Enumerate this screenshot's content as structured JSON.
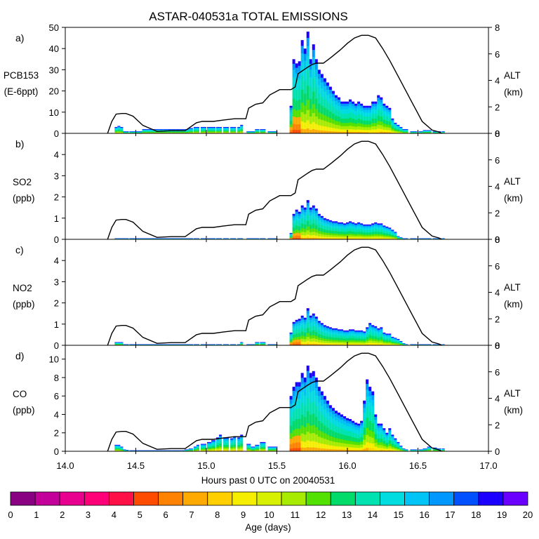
{
  "chart_data": {
    "type": "stacked-bar-with-line",
    "title": "ASTAR-040531a TOTAL EMISSIONS",
    "xlabel": "Hours past 0 UTC on 20040531",
    "x_range": [
      14.0,
      17.0
    ],
    "x_ticks": [
      "14.0",
      "14.5",
      "15.0",
      "15.5",
      "16.0",
      "16.5",
      "17.0"
    ],
    "x_tick_values": [
      14.0,
      14.5,
      15.0,
      15.5,
      16.0,
      16.5,
      17.0
    ],
    "colorbar": {
      "label": "Age (days)",
      "ticks": [
        "0",
        "1",
        "2",
        "3",
        "4",
        "5",
        "6",
        "7",
        "8",
        "9",
        "10",
        "11",
        "12",
        "13",
        "14",
        "15",
        "16",
        "17",
        "18",
        "19",
        "20"
      ],
      "colors": [
        "#8a0083",
        "#c4009a",
        "#e8008f",
        "#ff0078",
        "#ff1046",
        "#ff4c00",
        "#ff8200",
        "#ffaa00",
        "#ffcf00",
        "#f5ee00",
        "#d6f000",
        "#a7ec00",
        "#52e100",
        "#00db6a",
        "#00e3b1",
        "#00dce0",
        "#00c4f5",
        "#0098ff",
        "#0050ff",
        "#1c00ff",
        "#6a00ff"
      ]
    },
    "altitude_profile": {
      "name": "ALT (km)",
      "x": [
        14.3,
        14.33,
        14.36,
        14.4,
        14.43,
        14.48,
        14.55,
        14.65,
        14.75,
        14.85,
        14.93,
        14.97,
        15.05,
        15.12,
        15.2,
        15.28,
        15.3,
        15.35,
        15.4,
        15.45,
        15.52,
        15.55,
        15.6,
        15.63,
        15.65,
        15.72,
        15.75,
        15.78,
        15.83,
        15.88,
        15.95,
        16.0,
        16.05,
        16.1,
        16.15,
        16.2,
        16.25,
        16.3,
        16.35,
        16.4,
        16.45,
        16.5,
        16.53,
        16.6,
        16.65,
        16.67
      ],
      "alt_km": [
        0.0,
        0.9,
        1.45,
        1.5,
        1.5,
        1.3,
        0.6,
        0.15,
        0.2,
        0.2,
        0.8,
        0.9,
        0.9,
        1.0,
        1.1,
        1.1,
        1.9,
        2.2,
        2.3,
        2.9,
        3.3,
        3.3,
        3.3,
        3.5,
        4.5,
        5.0,
        5.2,
        5.3,
        5.3,
        5.7,
        6.3,
        6.8,
        7.2,
        7.4,
        7.4,
        7.2,
        6.4,
        5.5,
        4.5,
        3.5,
        2.5,
        1.5,
        0.9,
        0.25,
        0.1,
        0.0
      ],
      "range": [
        0,
        8
      ],
      "ticks": [
        "0",
        "2",
        "4",
        "6",
        "8"
      ],
      "tick_values": [
        0,
        2,
        4,
        6,
        8
      ]
    },
    "bar_x": [
      14.36,
      14.38,
      14.4,
      14.42,
      14.44,
      14.47,
      14.5,
      14.53,
      14.56,
      14.59,
      14.62,
      14.65,
      14.68,
      14.71,
      14.74,
      14.77,
      14.8,
      14.83,
      14.86,
      14.89,
      14.92,
      14.94,
      14.98,
      15.02,
      15.05,
      15.08,
      15.1,
      15.14,
      15.18,
      15.2,
      15.23,
      15.25,
      15.3,
      15.33,
      15.36,
      15.4,
      15.47,
      15.6,
      15.62,
      15.64,
      15.66,
      15.68,
      15.7,
      15.72,
      15.74,
      15.76,
      15.78,
      15.8,
      15.82,
      15.84,
      15.86,
      15.88,
      15.9,
      15.92,
      15.94,
      15.96,
      15.98,
      16.0,
      16.02,
      16.04,
      16.06,
      16.08,
      16.1,
      16.12,
      16.14,
      16.16,
      16.18,
      16.2,
      16.22,
      16.24,
      16.26,
      16.28,
      16.3,
      16.32,
      16.34,
      16.36,
      16.38,
      16.4,
      16.42,
      16.47,
      16.52,
      16.55,
      16.58,
      16.62,
      16.65,
      16.68
    ],
    "panels": [
      {
        "letter": "a)",
        "species": "PCB153",
        "unit": "(E-6ppt)",
        "y_range": [
          0,
          50
        ],
        "y_ticks": [
          "0",
          "10",
          "20",
          "30",
          "40",
          "50"
        ],
        "y_tick_values": [
          0,
          10,
          20,
          30,
          40,
          50
        ],
        "bar_heights": [
          3,
          3.5,
          3,
          1,
          1,
          1,
          1,
          1,
          2,
          2,
          2,
          2,
          2,
          2,
          2,
          2,
          2,
          2,
          2,
          2.5,
          3,
          3,
          3,
          3,
          3,
          3,
          3,
          3,
          3,
          3,
          3,
          4,
          1,
          1,
          2,
          2,
          1,
          13,
          35,
          33,
          34,
          44,
          40,
          48,
          35,
          42,
          35,
          30,
          28,
          26,
          24,
          22,
          20,
          18,
          17,
          15,
          15,
          15,
          16,
          15,
          14,
          15,
          14,
          13,
          13,
          13,
          15,
          15,
          18,
          17,
          14,
          13,
          12,
          7,
          5,
          4,
          3,
          2,
          2,
          1,
          1,
          1.5,
          1.5,
          1,
          1,
          1
        ]
      },
      {
        "letter": "b)",
        "species": "SO2",
        "unit": "(ppb)",
        "y_range": [
          0,
          5
        ],
        "y_ticks": [
          "0",
          "1",
          "2",
          "3",
          "4"
        ],
        "y_tick_values": [
          0,
          1,
          2,
          3,
          4
        ],
        "bar_heights": [
          0.05,
          0.05,
          0.05,
          0.05,
          0.05,
          0.05,
          0.05,
          0.05,
          0.05,
          0.05,
          0.05,
          0.05,
          0.05,
          0.05,
          0.05,
          0.05,
          0.05,
          0.05,
          0.05,
          0.05,
          0.05,
          0.05,
          0.05,
          0.05,
          0.05,
          0.05,
          0.05,
          0.05,
          0.05,
          0.05,
          0.05,
          0.05,
          0.05,
          0.05,
          0.05,
          0.05,
          0.05,
          0.3,
          1.2,
          1.4,
          1.3,
          1.6,
          1.5,
          1.85,
          1.5,
          1.6,
          1.45,
          1.2,
          1.1,
          1.0,
          0.95,
          0.9,
          0.85,
          0.85,
          0.8,
          0.8,
          0.75,
          0.8,
          0.85,
          0.8,
          0.75,
          0.8,
          0.75,
          0.7,
          0.7,
          0.7,
          0.75,
          0.8,
          0.75,
          0.75,
          0.65,
          0.6,
          0.55,
          0.45,
          0.35,
          0.15,
          0.1,
          0.05,
          0.05,
          0.05,
          0.05,
          0.05,
          0.05,
          0.05,
          0.05,
          0.05
        ]
      },
      {
        "letter": "c)",
        "species": "NO2",
        "unit": "(ppb)",
        "y_range": [
          0,
          5
        ],
        "y_ticks": [
          "0",
          "1",
          "2",
          "3",
          "4"
        ],
        "y_tick_values": [
          0,
          1,
          2,
          3,
          4
        ],
        "bar_heights": [
          0.15,
          0.15,
          0.15,
          0.05,
          0.05,
          0.05,
          0.05,
          0.05,
          0.05,
          0.05,
          0.05,
          0.05,
          0.05,
          0.05,
          0.05,
          0.05,
          0.05,
          0.05,
          0.05,
          0.05,
          0.05,
          0.05,
          0.05,
          0.05,
          0.05,
          0.05,
          0.05,
          0.05,
          0.05,
          0.05,
          0.05,
          0.15,
          0.05,
          0.05,
          0.15,
          0.15,
          0.05,
          0.6,
          1.1,
          1.2,
          1.25,
          1.4,
          1.3,
          1.75,
          1.4,
          1.5,
          1.35,
          1.15,
          1.05,
          0.95,
          0.9,
          0.85,
          0.8,
          0.8,
          0.75,
          0.75,
          0.7,
          0.7,
          0.75,
          0.75,
          0.7,
          0.7,
          0.7,
          0.65,
          0.85,
          1.05,
          0.95,
          0.9,
          0.8,
          0.85,
          0.6,
          0.55,
          0.55,
          0.4,
          0.35,
          0.3,
          0.2,
          0.1,
          0.05,
          0.05,
          0.05,
          0.05,
          0.05,
          0.05,
          0.05,
          0.05
        ]
      },
      {
        "letter": "d)",
        "species": "CO",
        "unit": "(ppb)",
        "y_range": [
          0,
          11.5
        ],
        "y_ticks": [
          "0",
          "2",
          "4",
          "6",
          "8",
          "10"
        ],
        "y_tick_values": [
          0,
          2,
          4,
          6,
          8,
          10
        ],
        "bar_heights": [
          0.7,
          0.7,
          0.5,
          0.2,
          0.15,
          0.1,
          0.1,
          0.1,
          0.1,
          0.1,
          0.1,
          0.1,
          0.1,
          0.1,
          0.1,
          0.1,
          0.1,
          0.1,
          0.2,
          0.3,
          0.5,
          0.7,
          0.8,
          1.0,
          1.2,
          1.5,
          1.8,
          1.5,
          1.4,
          1.6,
          1.5,
          1.8,
          0.8,
          0.5,
          0.7,
          1.0,
          0.5,
          6.0,
          7.0,
          7.5,
          7.5,
          8.5,
          8.0,
          9.3,
          8.5,
          8.7,
          8.0,
          7.0,
          6.5,
          6.0,
          5.5,
          5.0,
          4.7,
          4.4,
          4.2,
          4.0,
          3.8,
          3.6,
          3.5,
          3.3,
          3.1,
          3.0,
          3.3,
          5.5,
          7.8,
          7.0,
          6.5,
          4.0,
          3.0,
          3.0,
          2.5,
          2.0,
          2.5,
          1.8,
          1.4,
          1.0,
          0.6,
          0.3,
          0.2,
          0.2,
          0.2,
          0.3,
          0.5,
          0.4,
          0.3,
          0.3
        ]
      }
    ],
    "right_axis_label": "ALT",
    "right_axis_unit": "(km)"
  }
}
